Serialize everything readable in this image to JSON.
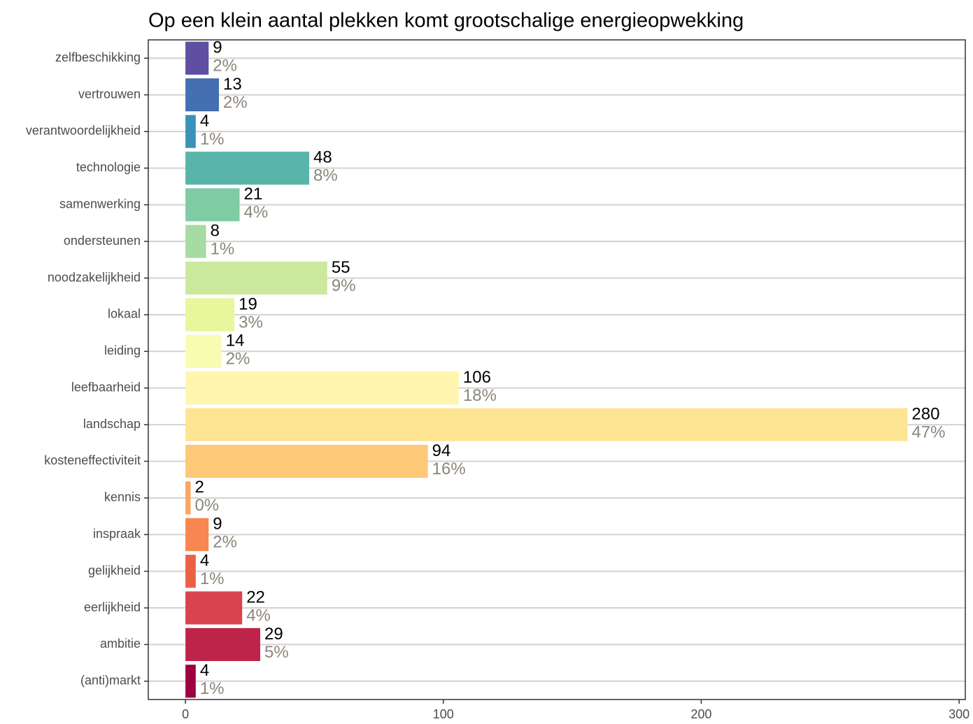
{
  "chart_data": {
    "type": "barh",
    "title": "Op een klein aantal plekken komt grootschalige energieopwekking",
    "categories": [
      "zelfbeschikking",
      "vertrouwen",
      "verantwoordelijkheid",
      "technologie",
      "samenwerking",
      "ondersteunen",
      "noodzakelijkheid",
      "lokaal",
      "leiding",
      "leefbaarheid",
      "landschap",
      "kosteneffectiviteit",
      "kennis",
      "inspraak",
      "gelijkheid",
      "eerlijkheid",
      "ambitie",
      "(anti)markt"
    ],
    "values": [
      9,
      13,
      4,
      48,
      21,
      8,
      55,
      19,
      14,
      106,
      280,
      94,
      2,
      9,
      4,
      22,
      29,
      4
    ],
    "percent_labels": [
      "2%",
      "2%",
      "1%",
      "8%",
      "4%",
      "1%",
      "9%",
      "3%",
      "2%",
      "18%",
      "47%",
      "16%",
      "0%",
      "2%",
      "1%",
      "4%",
      "5%",
      "1%"
    ],
    "colors": [
      "#5e4fa2",
      "#4470b1",
      "#3b92b8",
      "#59b4aa",
      "#7ecba4",
      "#a6dba4",
      "#cbe99d",
      "#e8f69c",
      "#f7fcb3",
      "#fff5ae",
      "#fee593",
      "#fdc877",
      "#fca55d",
      "#f88650",
      "#ec6145",
      "#d8434e",
      "#be2449",
      "#9e0142"
    ],
    "xlim": [
      -14.4,
      302.4
    ],
    "xticks": [
      0,
      100,
      200,
      300
    ],
    "grid": true
  }
}
